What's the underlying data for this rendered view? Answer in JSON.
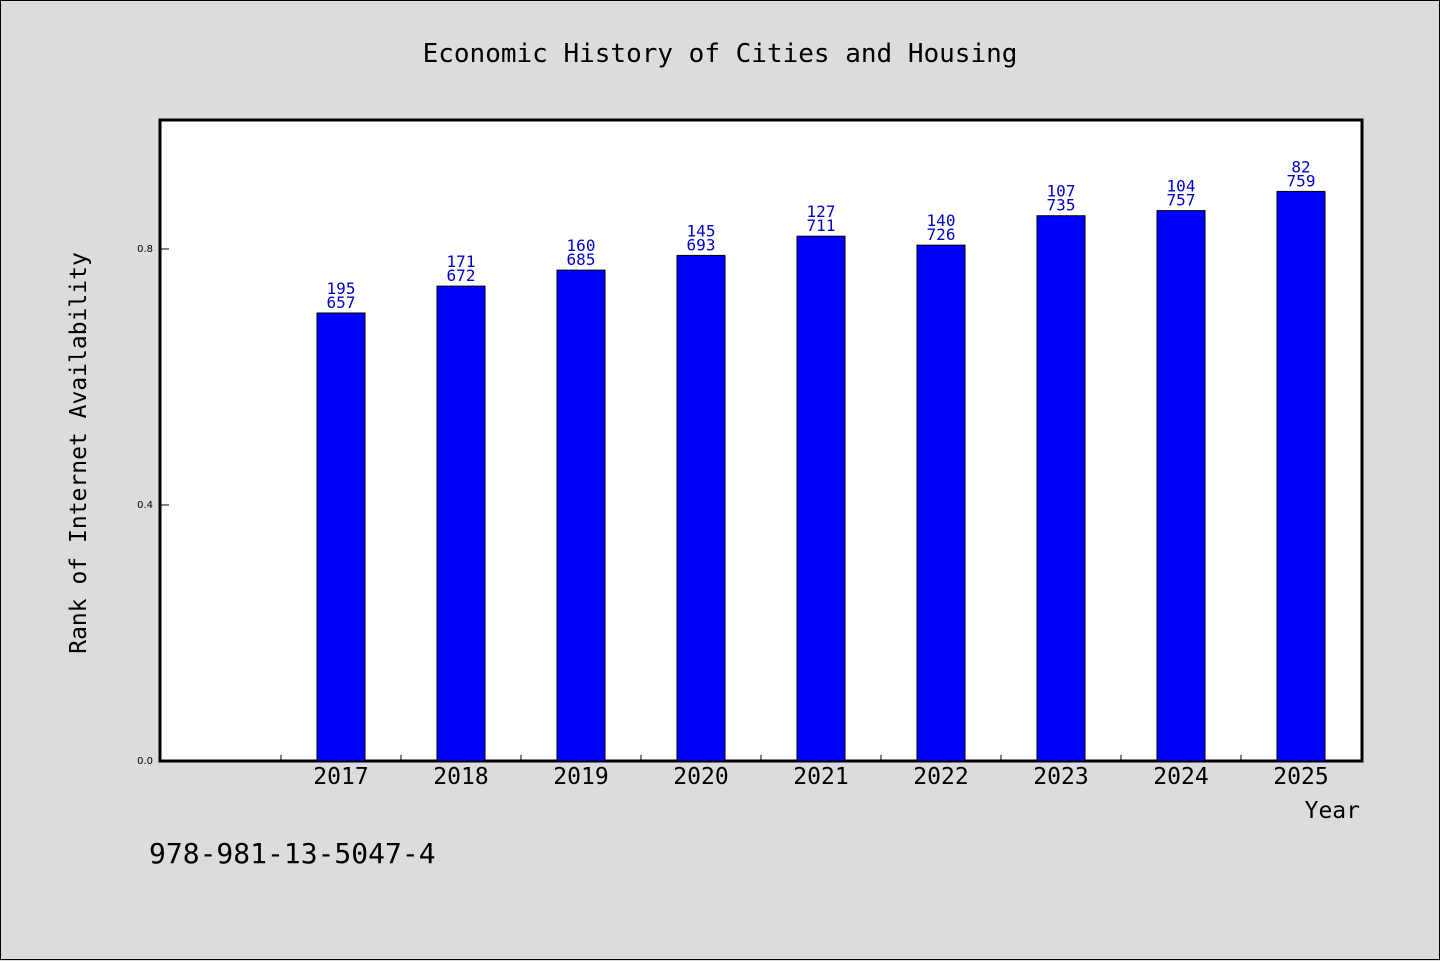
{
  "chart_data": {
    "type": "bar",
    "title": "Economic History of Cities and Housing",
    "xlabel": "Year",
    "ylabel": "Rank of Internet Availability",
    "categories": [
      "2017",
      "2018",
      "2019",
      "2020",
      "2021",
      "2022",
      "2023",
      "2024",
      "2025"
    ],
    "values": [
      0.7,
      0.742,
      0.767,
      0.79,
      0.82,
      0.806,
      0.852,
      0.86,
      0.89
    ],
    "label_top": [
      "195",
      "171",
      "160",
      "145",
      "127",
      "140",
      "107",
      "104",
      "82"
    ],
    "label_bottom": [
      "657",
      "672",
      "685",
      "693",
      "711",
      "726",
      "735",
      "757",
      "759"
    ],
    "ylim": [
      0,
      1.0
    ],
    "yticks": [
      0.0,
      0.4,
      0.8
    ],
    "ytick_labels": [
      "0.0",
      "0.4",
      "0.8"
    ],
    "bar_color": "#0000ff",
    "label_color": "#0000cc",
    "grid": false,
    "footer_text": "978-981-13-5047-4"
  }
}
